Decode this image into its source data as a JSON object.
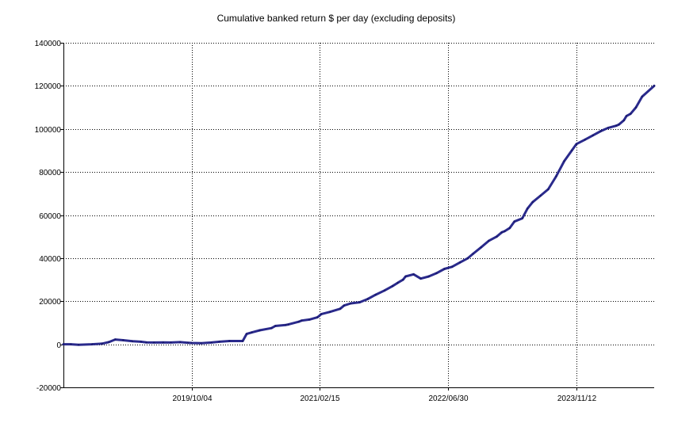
{
  "chart_data": {
    "type": "line",
    "title": "Cumulative banked return $ per day (excluding deposits)",
    "xlabel": "",
    "ylabel": "",
    "x_axis_type": "date",
    "x_range": [
      "2018-05-22",
      "2024-09-10"
    ],
    "ylim": [
      -20000,
      140000
    ],
    "y_ticks": [
      140000,
      120000,
      100000,
      80000,
      60000,
      40000,
      20000,
      0,
      -20000
    ],
    "y_tick_labels": [
      "140000",
      "120000",
      "100000",
      "80000",
      "60000",
      "40000",
      "20000",
      "0",
      "-20000"
    ],
    "x_ticks": [
      "2019-10-04",
      "2021-02-15",
      "2022-06-30",
      "2023-11-12"
    ],
    "x_tick_labels": [
      "2019/10/04",
      "2021/02/15",
      "2022/06/30",
      "2023/11/12"
    ],
    "grid": true,
    "grid_style": "dotted",
    "legend": "none",
    "colors": {
      "line": "#2a2a8c",
      "grid": "#000000",
      "axis": "#000000"
    },
    "series": [
      {
        "x": [
          "2018-05-22",
          "2018-06-20",
          "2018-07-20",
          "2018-09-10",
          "2018-10-20",
          "2018-11-15",
          "2018-12-10",
          "2019-01-10",
          "2019-02-15",
          "2019-03-20",
          "2019-04-10",
          "2019-05-10",
          "2019-06-15",
          "2019-07-15",
          "2019-08-20",
          "2019-09-20",
          "2019-10-04",
          "2019-11-10",
          "2019-12-20",
          "2020-01-20",
          "2020-02-28",
          "2020-04-20",
          "2020-05-05",
          "2020-05-25",
          "2020-06-25",
          "2020-08-10",
          "2020-08-25",
          "2020-10-05",
          "2020-10-15",
          "2020-11-25",
          "2020-12-05",
          "2021-01-05",
          "2021-02-05",
          "2021-02-20",
          "2021-03-25",
          "2021-05-05",
          "2021-05-20",
          "2021-06-15",
          "2021-07-20",
          "2021-08-20",
          "2021-09-20",
          "2021-10-25",
          "2021-11-25",
          "2021-12-15",
          "2022-01-05",
          "2022-01-15",
          "2022-02-15",
          "2022-03-15",
          "2022-04-15",
          "2022-05-15",
          "2022-06-15",
          "2022-07-15",
          "2022-08-15",
          "2022-09-15",
          "2022-10-05",
          "2022-11-05",
          "2022-12-05",
          "2023-01-05",
          "2023-01-25",
          "2023-02-05",
          "2023-02-25",
          "2023-03-15",
          "2023-04-15",
          "2023-05-05",
          "2023-05-25",
          "2023-06-25",
          "2023-07-25",
          "2023-08-25",
          "2023-09-25",
          "2023-10-25",
          "2023-11-12",
          "2023-12-15",
          "2024-01-15",
          "2024-02-15",
          "2024-03-15",
          "2024-04-15",
          "2024-04-25",
          "2024-05-15",
          "2024-05-25",
          "2024-06-10",
          "2024-07-01",
          "2024-07-25",
          "2024-09-10"
        ],
        "values": [
          0,
          0,
          -200,
          0,
          300,
          1000,
          2200,
          1900,
          1400,
          1200,
          900,
          800,
          900,
          800,
          1000,
          700,
          600,
          500,
          800,
          1200,
          1500,
          1500,
          4800,
          5500,
          6500,
          7500,
          8500,
          9000,
          9200,
          10500,
          11000,
          11500,
          12500,
          14000,
          15000,
          16500,
          18000,
          19000,
          19500,
          21000,
          23000,
          25000,
          27000,
          28500,
          30000,
          31500,
          32500,
          30500,
          31500,
          33000,
          35000,
          36000,
          38000,
          40000,
          42000,
          45000,
          48000,
          50000,
          52000,
          52500,
          54000,
          57000,
          58500,
          63000,
          66000,
          69000,
          72000,
          78000,
          85000,
          90000,
          93000,
          95000,
          97000,
          99000,
          100500,
          101500,
          102000,
          104000,
          106000,
          107000,
          110000,
          115000,
          120000
        ]
      }
    ]
  }
}
